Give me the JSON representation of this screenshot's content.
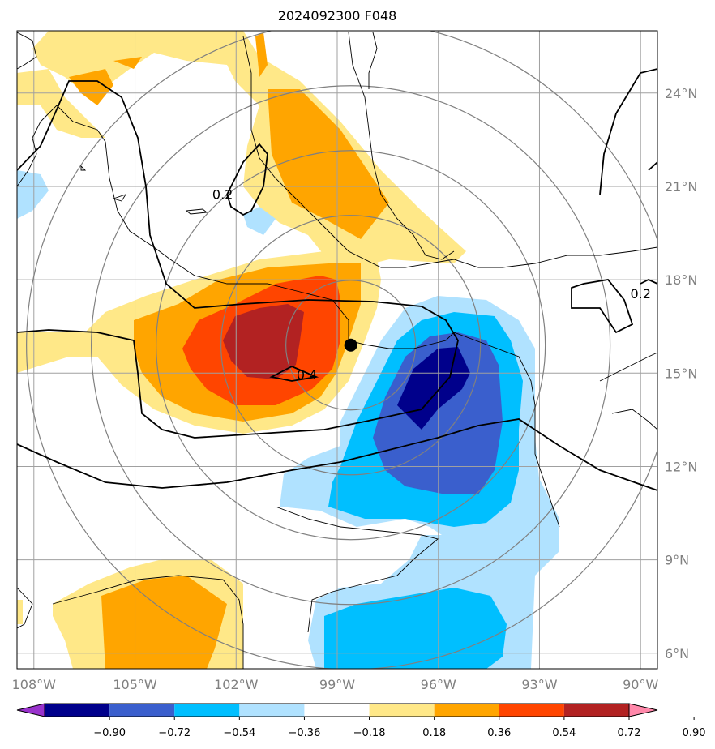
{
  "title": "2024092300 F048",
  "map": {
    "lon_range": [
      -108.5,
      -89.5
    ],
    "lat_range": [
      5.5,
      26.0
    ],
    "lon_ticks": [
      {
        "value": -108,
        "label": "108°W"
      },
      {
        "value": -105,
        "label": "105°W"
      },
      {
        "value": -102,
        "label": "102°W"
      },
      {
        "value": -99,
        "label": "99°W"
      },
      {
        "value": -96,
        "label": "96°W"
      },
      {
        "value": -93,
        "label": "93°W"
      },
      {
        "value": -90,
        "label": "90°W"
      }
    ],
    "lat_ticks": [
      {
        "value": 24,
        "label": "24°N"
      },
      {
        "value": 21,
        "label": "21°N"
      },
      {
        "value": 18,
        "label": "18°N"
      },
      {
        "value": 15,
        "label": "15°N"
      },
      {
        "value": 12,
        "label": "12°N"
      },
      {
        "value": 9,
        "label": "9°N"
      },
      {
        "value": 6,
        "label": "6°N"
      }
    ],
    "storm_center": {
      "lon": -98.6,
      "lat": 15.9
    },
    "range_ring_count": 5,
    "contour_labels": [
      {
        "text": "0.2",
        "lon": -102.4,
        "lat": 20.6
      },
      {
        "text": "0.4",
        "lon": -99.9,
        "lat": 14.8
      },
      {
        "text": "0.2",
        "lon": -90.0,
        "lat": 17.4
      }
    ]
  },
  "colorbar": {
    "colors": [
      "#9932cc",
      "#00008b",
      "#3a5fcd",
      "#00bfff",
      "#b0e2ff",
      "#ffffff",
      "#ffe888",
      "#ffa500",
      "#ff4500",
      "#b22222",
      "#ff88aa"
    ],
    "labels": [
      "−0.90",
      "−0.72",
      "−0.54",
      "−0.36",
      "−0.18",
      "0.18",
      "0.36",
      "0.54",
      "0.72",
      "0.90"
    ]
  }
}
